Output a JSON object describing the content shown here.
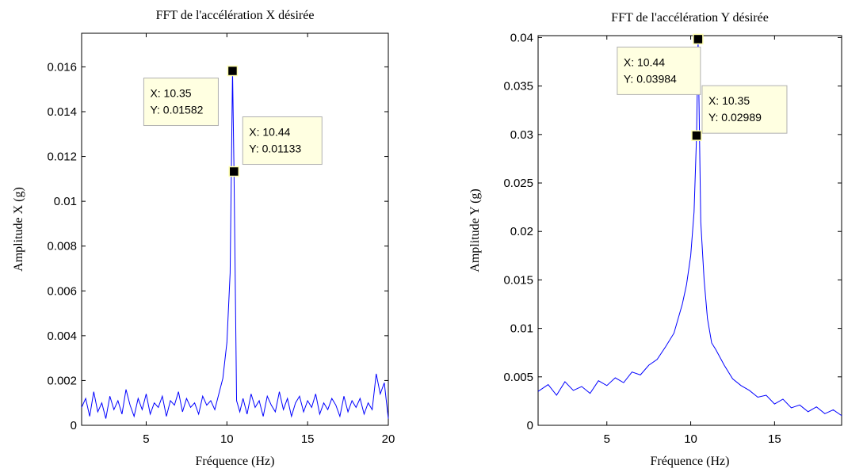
{
  "chart_data": [
    {
      "type": "line",
      "title": "FFT de l'accélération X désirée",
      "xlabel": "Fréquence (Hz)",
      "ylabel": "Amplitude X (g)",
      "x": [
        1,
        1.25,
        1.5,
        1.75,
        2,
        2.25,
        2.5,
        2.75,
        3,
        3.25,
        3.5,
        3.75,
        4,
        4.25,
        4.5,
        4.75,
        5,
        5.25,
        5.5,
        5.75,
        6,
        6.25,
        6.5,
        6.75,
        7,
        7.25,
        7.5,
        7.75,
        8,
        8.25,
        8.5,
        8.75,
        9,
        9.25,
        9.5,
        9.75,
        10,
        10.2,
        10.35,
        10.44,
        10.6,
        10.8,
        11,
        11.25,
        11.5,
        11.75,
        12,
        12.25,
        12.5,
        12.75,
        13,
        13.25,
        13.5,
        13.75,
        14,
        14.25,
        14.5,
        14.75,
        15,
        15.25,
        15.5,
        15.75,
        16,
        16.25,
        16.5,
        16.75,
        17,
        17.25,
        17.5,
        17.75,
        18,
        18.25,
        18.5,
        18.75,
        19,
        19.25,
        19.5,
        19.75,
        20
      ],
      "series": [
        {
          "color": "#0000ff",
          "values": [
            0.0008,
            0.0012,
            0.0004,
            0.0015,
            0.0006,
            0.001,
            0.0003,
            0.0013,
            0.0007,
            0.0011,
            0.0005,
            0.0016,
            0.0009,
            0.0004,
            0.0012,
            0.0007,
            0.0014,
            0.0005,
            0.001,
            0.0008,
            0.0013,
            0.0004,
            0.0011,
            0.0009,
            0.0015,
            0.0006,
            0.0012,
            0.0008,
            0.001,
            0.0005,
            0.0013,
            0.0009,
            0.0011,
            0.0007,
            0.0014,
            0.0021,
            0.0037,
            0.0068,
            0.01582,
            0.01133,
            0.0011,
            0.0006,
            0.0012,
            0.0005,
            0.0014,
            0.0008,
            0.0011,
            0.0004,
            0.0013,
            0.0009,
            0.0006,
            0.0015,
            0.0007,
            0.0012,
            0.0004,
            0.001,
            0.0013,
            0.0006,
            0.0011,
            0.0008,
            0.0014,
            0.0005,
            0.001,
            0.0007,
            0.0012,
            0.0009,
            0.0004,
            0.0013,
            0.0006,
            0.0011,
            0.0008,
            0.0012,
            0.0005,
            0.001,
            0.0007,
            0.0023,
            0.0014,
            0.0019,
            0.0003
          ]
        }
      ],
      "xlim": [
        1,
        20
      ],
      "ylim": [
        0,
        0.0175
      ],
      "xticks": [
        5,
        10,
        15,
        20
      ],
      "yticks": [
        0,
        0.002,
        0.004,
        0.006,
        0.008,
        0.01,
        0.012,
        0.014,
        0.016
      ],
      "annotations": [
        {
          "x": 10.35,
          "y": 0.01582,
          "text_x": "X: 10.35",
          "text_y": "Y: 0.01582"
        },
        {
          "x": 10.44,
          "y": 0.01133,
          "text_x": "X: 10.44",
          "text_y": "Y: 0.01133"
        }
      ]
    },
    {
      "type": "line",
      "title": "FFT de l'accélération Y désirée",
      "xlabel": "Fréquence (Hz)",
      "ylabel": "Amplitude Y (g)",
      "x": [
        0.9,
        1.5,
        2,
        2.5,
        3,
        3.5,
        4,
        4.5,
        5,
        5.5,
        6,
        6.5,
        7,
        7.5,
        8,
        8.5,
        9,
        9.5,
        9.75,
        10,
        10.2,
        10.35,
        10.44,
        10.6,
        10.8,
        11,
        11.25,
        11.5,
        12,
        12.5,
        13,
        13.5,
        14,
        14.5,
        15,
        15.5,
        16,
        16.5,
        17,
        17.5,
        18,
        18.5,
        19
      ],
      "series": [
        {
          "color": "#0000ff",
          "values": [
            0.0035,
            0.0042,
            0.0031,
            0.0045,
            0.0036,
            0.004,
            0.0033,
            0.0046,
            0.0041,
            0.0049,
            0.0044,
            0.0055,
            0.0052,
            0.0062,
            0.0068,
            0.0081,
            0.0095,
            0.0125,
            0.0145,
            0.0175,
            0.022,
            0.02989,
            0.03984,
            0.021,
            0.015,
            0.011,
            0.0085,
            0.0078,
            0.0062,
            0.0048,
            0.0041,
            0.0036,
            0.0029,
            0.0031,
            0.0022,
            0.0027,
            0.0018,
            0.0021,
            0.0014,
            0.0019,
            0.0012,
            0.0016,
            0.001
          ]
        }
      ],
      "xlim": [
        0.9,
        19
      ],
      "ylim": [
        0,
        0.0402
      ],
      "xticks": [
        5,
        10,
        15
      ],
      "yticks": [
        0,
        0.005,
        0.01,
        0.015,
        0.02,
        0.025,
        0.03,
        0.035,
        0.04
      ],
      "annotations": [
        {
          "x": 10.44,
          "y": 0.03984,
          "text_x": "X: 10.44",
          "text_y": "Y: 0.03984"
        },
        {
          "x": 10.35,
          "y": 0.02989,
          "text_x": "X: 10.35",
          "text_y": "Y: 0.02989"
        }
      ]
    }
  ]
}
